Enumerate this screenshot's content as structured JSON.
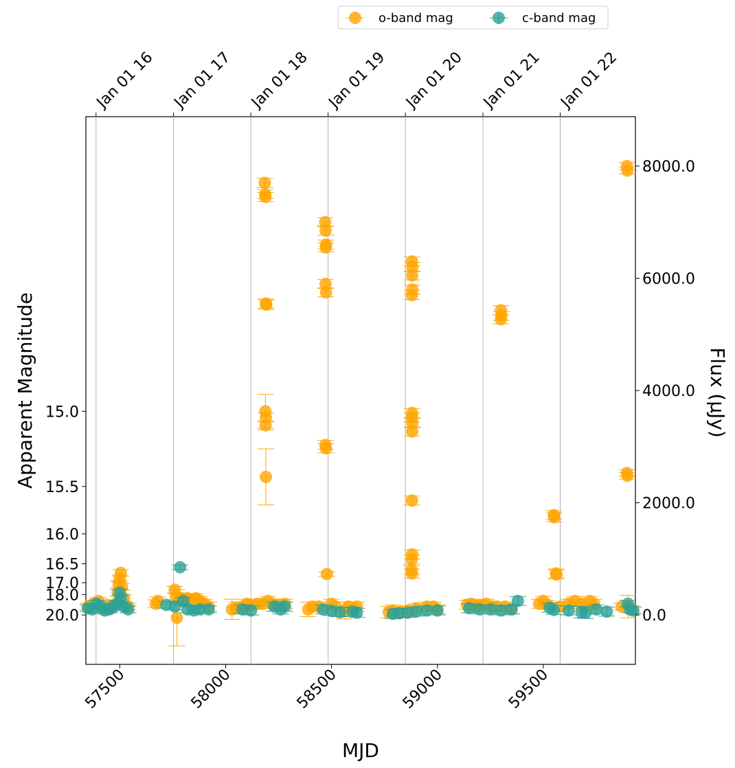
{
  "chart_data": {
    "type": "scatter",
    "title": "",
    "xlabel": "MJD",
    "ylabel_left": "Apparent Magnitude",
    "ylabel_right": "Flux (μJy)",
    "xlim": [
      57340,
      59935
    ],
    "ylim_flux": [
      -880,
      8880
    ],
    "x_ticks": [
      57500,
      58000,
      58500,
      59000,
      59500
    ],
    "x_tick_labels": [
      "57500",
      "58000",
      "58500",
      "59000",
      "59500"
    ],
    "top_ticks_mjd": [
      57388,
      57754,
      58119,
      58484,
      58849,
      59215,
      59580
    ],
    "top_tick_labels": [
      "Jan 01 16",
      "Jan 01 17",
      "Jan 01 18",
      "Jan 01 19",
      "Jan 01 20",
      "Jan 01 21",
      "Jan 01 22"
    ],
    "left_ticks_flux": [
      3630,
      2290,
      1445,
      912,
      575,
      363,
      0
    ],
    "left_tick_labels": [
      "15.0",
      "15.5",
      "16.0",
      "16.5",
      "17.0",
      "18.0",
      "20.0"
    ],
    "right_ticks": [
      0,
      2000,
      4000,
      6000,
      8000
    ],
    "right_tick_labels": [
      "0.0",
      "2000.0",
      "4000.0",
      "6000.0",
      "8000.0"
    ],
    "grid": "vertical lines at top ticks",
    "legend": {
      "position": "top",
      "entries": [
        "o-band mag",
        "c-band mag"
      ]
    },
    "colors": {
      "o": "#FFA500",
      "c": "#2AA198"
    },
    "series": [
      {
        "name": "o-band mag",
        "points": [
          [
            57350,
            150,
            60
          ],
          [
            57375,
            200,
            60
          ],
          [
            57400,
            250,
            60
          ],
          [
            57420,
            100,
            60
          ],
          [
            57440,
            180,
            60
          ],
          [
            57460,
            120,
            60
          ],
          [
            57480,
            200,
            60
          ],
          [
            57490,
            400,
            60
          ],
          [
            57495,
            550,
            60
          ],
          [
            57500,
            650,
            60
          ],
          [
            57505,
            750,
            60
          ],
          [
            57510,
            500,
            60
          ],
          [
            57520,
            300,
            60
          ],
          [
            57540,
            150,
            60
          ],
          [
            57670,
            200,
            70
          ],
          [
            57680,
            250,
            70
          ],
          [
            57760,
            450,
            60
          ],
          [
            57765,
            320,
            60
          ],
          [
            57770,
            -50,
            500
          ],
          [
            57790,
            300,
            80
          ],
          [
            57800,
            250,
            80
          ],
          [
            57820,
            300,
            80
          ],
          [
            57840,
            280,
            80
          ],
          [
            57860,
            300,
            80
          ],
          [
            57880,
            250,
            80
          ],
          [
            57900,
            200,
            80
          ],
          [
            57920,
            150,
            80
          ],
          [
            58030,
            100,
            180
          ],
          [
            58050,
            130,
            100
          ],
          [
            58080,
            150,
            80
          ],
          [
            58100,
            200,
            80
          ],
          [
            58120,
            180,
            80
          ],
          [
            58150,
            200,
            80
          ],
          [
            58175,
            200,
            80
          ],
          [
            58185,
            7700,
            80
          ],
          [
            58187,
            7500,
            80
          ],
          [
            58188,
            7450,
            80
          ],
          [
            58190,
            5550,
            80
          ],
          [
            58192,
            5530,
            80
          ],
          [
            58188,
            3630,
            300
          ],
          [
            58190,
            3520,
            80
          ],
          [
            58189,
            3380,
            80
          ],
          [
            58190,
            2460,
            500
          ],
          [
            58200,
            250,
            80
          ],
          [
            58220,
            200,
            80
          ],
          [
            58250,
            180,
            80
          ],
          [
            58280,
            200,
            80
          ],
          [
            58390,
            100,
            130
          ],
          [
            58410,
            150,
            80
          ],
          [
            58440,
            150,
            80
          ],
          [
            58470,
            7000,
            80
          ],
          [
            58472,
            6850,
            80
          ],
          [
            58474,
            6600,
            80
          ],
          [
            58473,
            6550,
            80
          ],
          [
            58472,
            5900,
            80
          ],
          [
            58474,
            5750,
            80
          ],
          [
            58472,
            3030,
            80
          ],
          [
            58474,
            2970,
            80
          ],
          [
            58478,
            730,
            40
          ],
          [
            58500,
            200,
            80
          ],
          [
            58520,
            150,
            80
          ],
          [
            58560,
            80,
            150
          ],
          [
            58580,
            150,
            80
          ],
          [
            58600,
            100,
            80
          ],
          [
            58620,
            150,
            80
          ],
          [
            58770,
            50,
            100
          ],
          [
            58790,
            80,
            100
          ],
          [
            58820,
            50,
            100
          ],
          [
            58860,
            80,
            80
          ],
          [
            58880,
            6300,
            80
          ],
          [
            58882,
            6200,
            80
          ],
          [
            58881,
            6050,
            80
          ],
          [
            58882,
            5800,
            80
          ],
          [
            58880,
            5700,
            80
          ],
          [
            58881,
            3600,
            80
          ],
          [
            58880,
            3520,
            80
          ],
          [
            58882,
            3420,
            80
          ],
          [
            58881,
            3270,
            80
          ],
          [
            58880,
            2040,
            80
          ],
          [
            58881,
            1080,
            80
          ],
          [
            58879,
            990,
            80
          ],
          [
            58878,
            800,
            80
          ],
          [
            58880,
            740,
            80
          ],
          [
            58900,
            120,
            80
          ],
          [
            58950,
            150,
            80
          ],
          [
            58980,
            150,
            80
          ],
          [
            59000,
            100,
            80
          ],
          [
            59140,
            180,
            80
          ],
          [
            59160,
            200,
            80
          ],
          [
            59180,
            150,
            80
          ],
          [
            59200,
            180,
            80
          ],
          [
            59230,
            200,
            80
          ],
          [
            59260,
            150,
            80
          ],
          [
            59280,
            150,
            80
          ],
          [
            59300,
            5430,
            80
          ],
          [
            59302,
            5330,
            80
          ],
          [
            59300,
            5270,
            80
          ],
          [
            59320,
            150,
            80
          ],
          [
            59350,
            100,
            80
          ],
          [
            59480,
            200,
            80
          ],
          [
            59500,
            250,
            80
          ],
          [
            59520,
            180,
            80
          ],
          [
            59550,
            1780,
            80
          ],
          [
            59552,
            1740,
            80
          ],
          [
            59560,
            740,
            80
          ],
          [
            59562,
            720,
            80
          ],
          [
            59580,
            150,
            80
          ],
          [
            59620,
            200,
            80
          ],
          [
            59650,
            250,
            80
          ],
          [
            59680,
            200,
            80
          ],
          [
            59700,
            150,
            80
          ],
          [
            59720,
            250,
            80
          ],
          [
            59740,
            200,
            80
          ],
          [
            59870,
            150,
            60
          ],
          [
            59895,
            8000,
            60
          ],
          [
            59897,
            7920,
            60
          ],
          [
            59895,
            2530,
            60
          ],
          [
            59897,
            2480,
            60
          ],
          [
            59900,
            150,
            200
          ],
          [
            59920,
            100,
            60
          ]
        ]
      },
      {
        "name": "c-band mag",
        "points": [
          [
            57350,
            120,
            60
          ],
          [
            57370,
            100,
            60
          ],
          [
            57390,
            200,
            60
          ],
          [
            57410,
            150,
            60
          ],
          [
            57430,
            80,
            60
          ],
          [
            57450,
            100,
            60
          ],
          [
            57470,
            150,
            60
          ],
          [
            57490,
            200,
            60
          ],
          [
            57500,
            400,
            60
          ],
          [
            57505,
            300,
            60
          ],
          [
            57520,
            150,
            60
          ],
          [
            57540,
            100,
            60
          ],
          [
            57720,
            180,
            60
          ],
          [
            57760,
            150,
            60
          ],
          [
            57785,
            850,
            40
          ],
          [
            57800,
            250,
            60
          ],
          [
            57820,
            100,
            60
          ],
          [
            57850,
            80,
            60
          ],
          [
            57880,
            100,
            60
          ],
          [
            57920,
            100,
            60
          ],
          [
            58080,
            100,
            80
          ],
          [
            58120,
            80,
            80
          ],
          [
            58230,
            150,
            80
          ],
          [
            58280,
            150,
            80
          ],
          [
            58260,
            100,
            80
          ],
          [
            58460,
            100,
            80
          ],
          [
            58500,
            70,
            80
          ],
          [
            58540,
            50,
            80
          ],
          [
            58600,
            60,
            80
          ],
          [
            58620,
            40,
            80
          ],
          [
            58790,
            20,
            80
          ],
          [
            58820,
            30,
            80
          ],
          [
            58860,
            40,
            80
          ],
          [
            58900,
            60,
            80
          ],
          [
            58950,
            80,
            80
          ],
          [
            59000,
            80,
            80
          ],
          [
            59150,
            120,
            80
          ],
          [
            59200,
            100,
            80
          ],
          [
            59250,
            100,
            80
          ],
          [
            59300,
            80,
            80
          ],
          [
            59350,
            100,
            80
          ],
          [
            59380,
            250,
            80
          ],
          [
            59530,
            130,
            80
          ],
          [
            59550,
            90,
            80
          ],
          [
            59620,
            80,
            80
          ],
          [
            59680,
            50,
            100
          ],
          [
            59700,
            40,
            100
          ],
          [
            59750,
            100,
            80
          ],
          [
            59800,
            60,
            80
          ],
          [
            59900,
            200,
            60
          ],
          [
            59910,
            100,
            60
          ],
          [
            59925,
            80,
            60
          ]
        ]
      }
    ]
  }
}
